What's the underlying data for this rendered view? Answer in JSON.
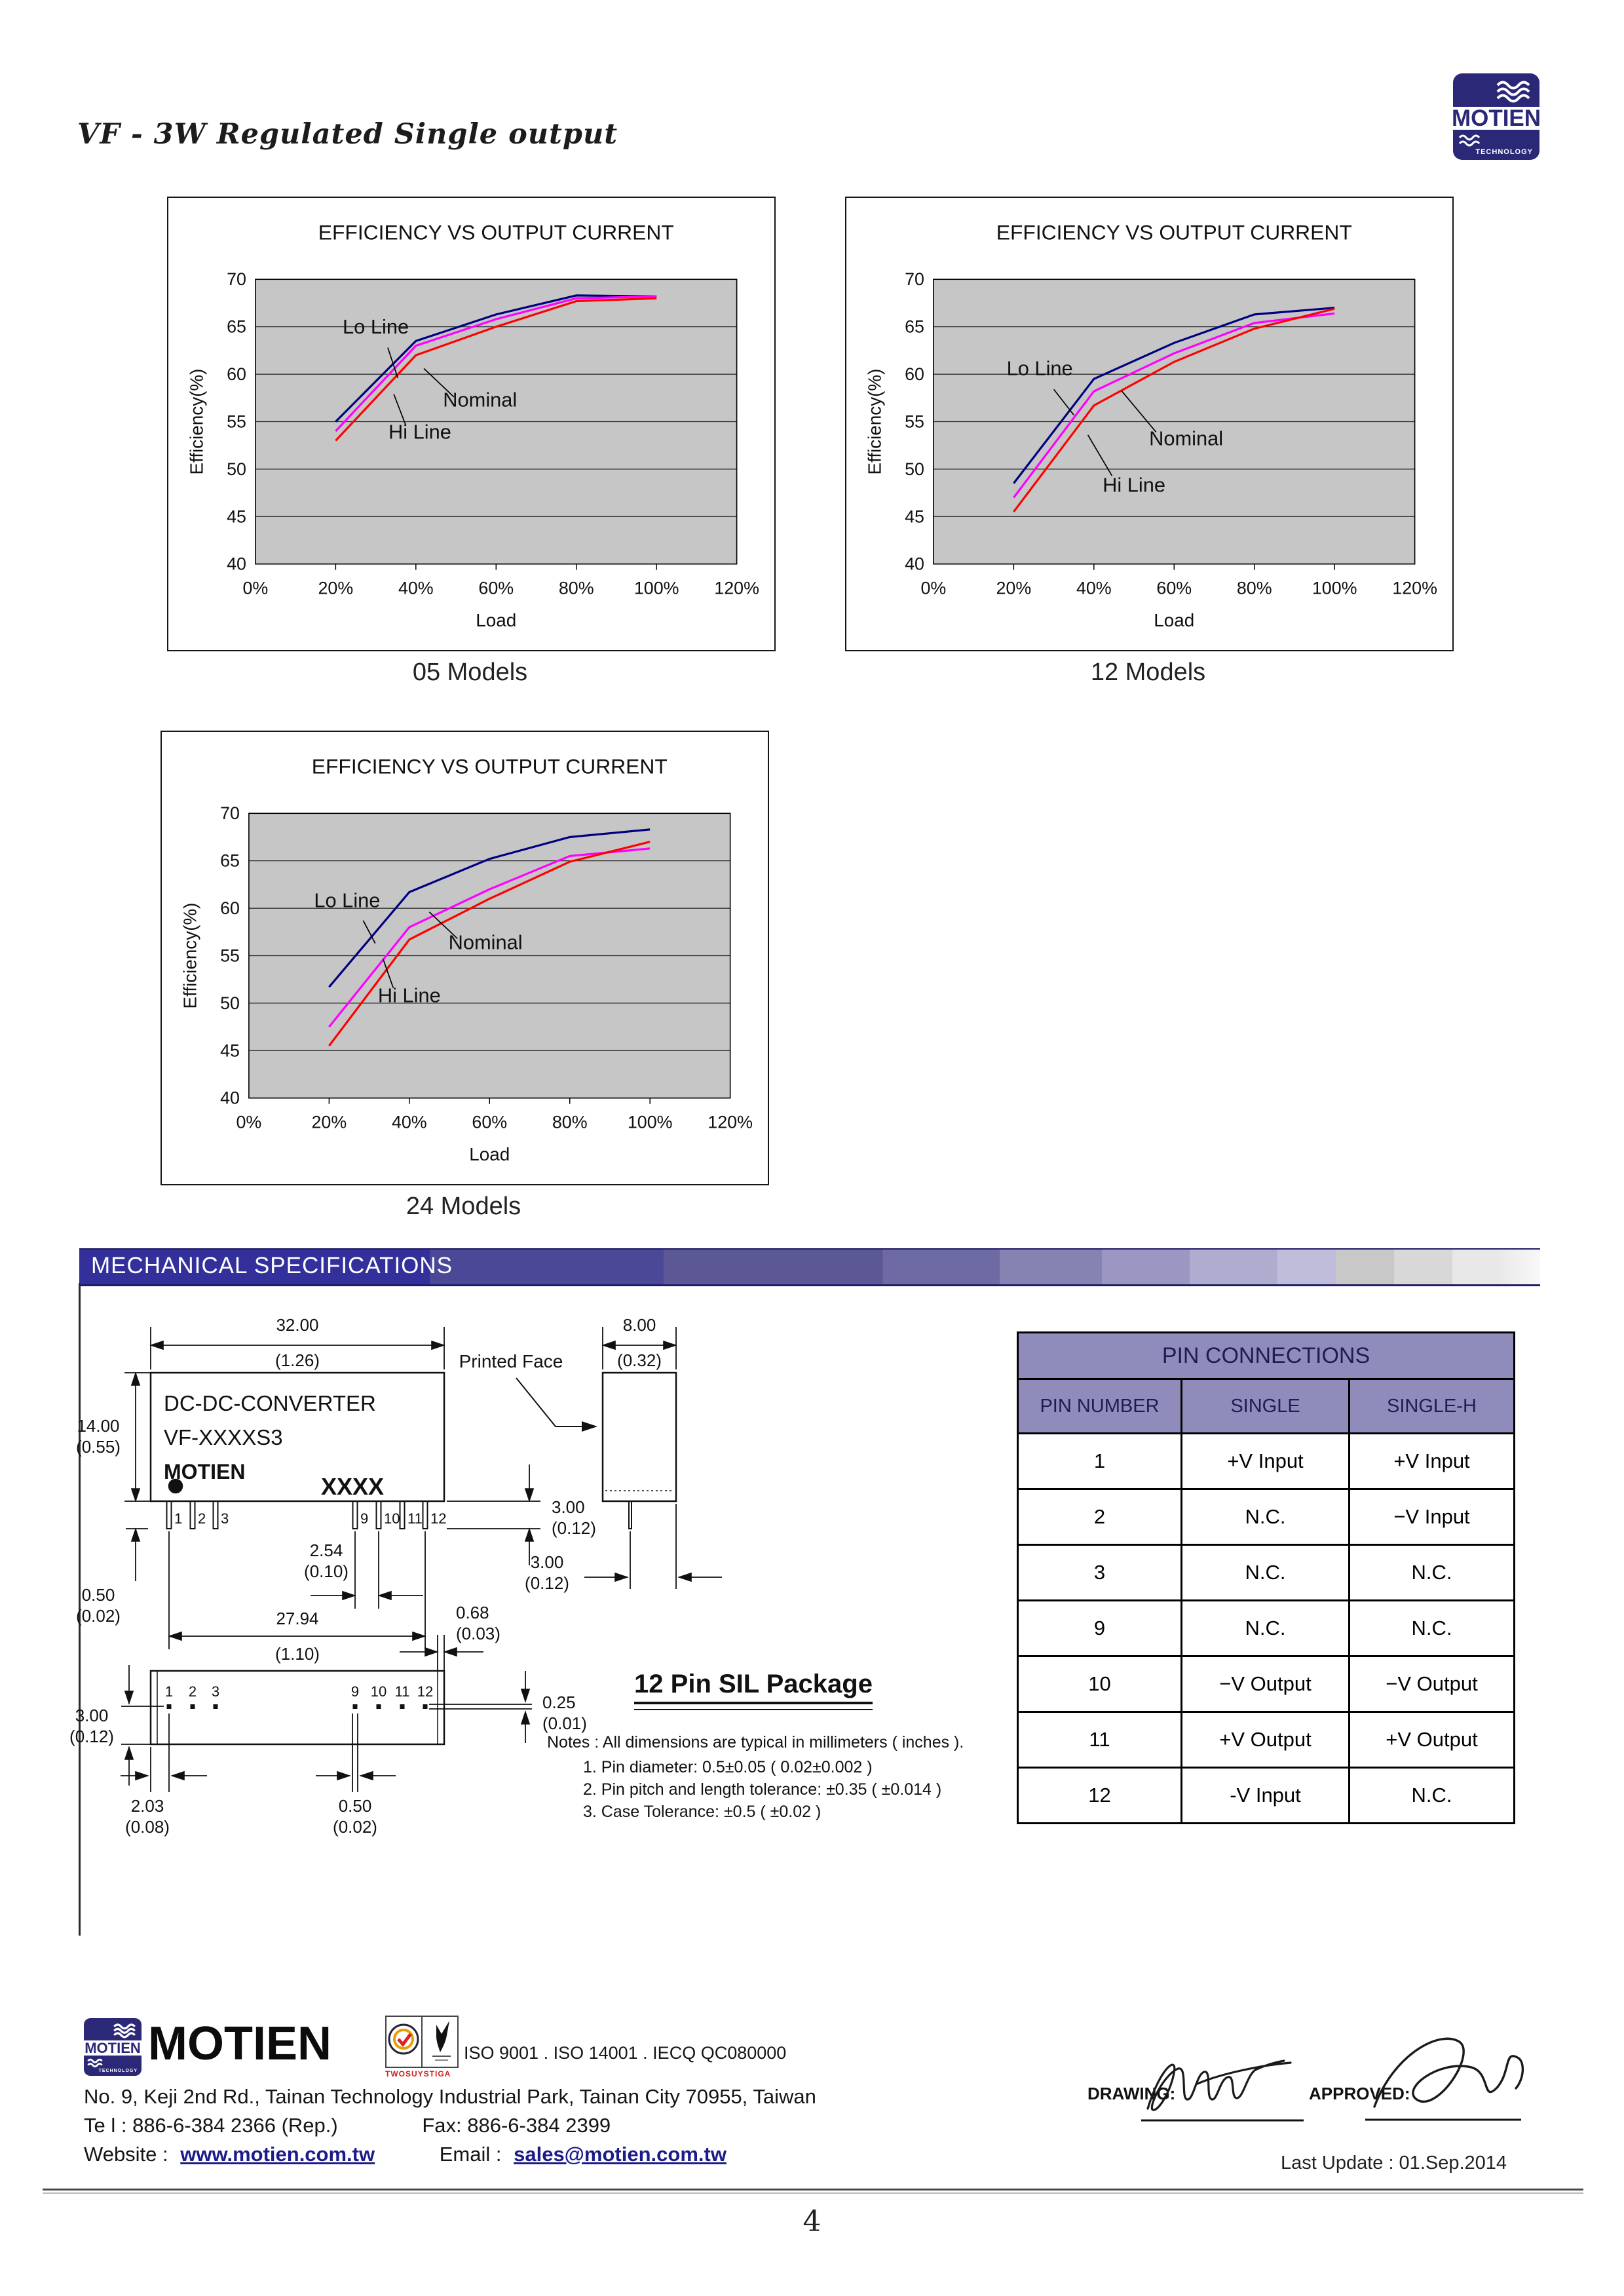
{
  "page": {
    "title": "VF - 3W Regulated Single output",
    "page_number": "4",
    "last_update": "Last Update : 01.Sep.2014"
  },
  "logo": {
    "brand": "MOTIEN",
    "sub": "TECHNOLOGY"
  },
  "charts": [
    {
      "id": "chart-05",
      "caption": "05 Models",
      "chart_data_note": "see series below",
      "title": "EFFICIENCY VS OUTPUT CURRENT",
      "xlabel": "Load",
      "ylabel": "Efficiency(%)",
      "type": "line",
      "x_ticks": [
        "0%",
        "20%",
        "40%",
        "60%",
        "80%",
        "100%",
        "120%"
      ],
      "x_values": [
        0,
        20,
        40,
        60,
        80,
        100,
        120
      ],
      "xlim": [
        0,
        120
      ],
      "ylim": [
        40,
        70
      ],
      "y_step": 5,
      "series": [
        {
          "name": "Lo Line",
          "color": "#000080",
          "x": [
            20,
            40,
            60,
            80,
            100
          ],
          "y": [
            55,
            63.5,
            66.3,
            68.3,
            68.2
          ]
        },
        {
          "name": "Nominal",
          "color": "#FF00FF",
          "x": [
            20,
            40,
            60,
            80,
            100
          ],
          "y": [
            54,
            63,
            65.8,
            68,
            68.2
          ]
        },
        {
          "name": "Hi Line",
          "color": "#FF0000",
          "x": [
            20,
            40,
            60,
            80,
            100
          ],
          "y": [
            53,
            62,
            65,
            67.7,
            68
          ]
        }
      ],
      "annotations": [
        {
          "label": "Lo Line",
          "tx": 30,
          "ty": 64.3,
          "lx1": 33,
          "ly1": 62.8,
          "lx2": 35.5,
          "ly2": 59.6
        },
        {
          "label": "Nominal",
          "tx": 56,
          "ty": 56.6,
          "lx1": 49.5,
          "ly1": 57.6,
          "lx2": 42,
          "ly2": 60.6
        },
        {
          "label": "Hi Line",
          "tx": 41,
          "ty": 53.2,
          "lx1": 37.5,
          "ly1": 54.6,
          "lx2": 34.5,
          "ly2": 57.9
        }
      ]
    },
    {
      "id": "chart-12",
      "caption": "12 Models",
      "title": "EFFICIENCY VS OUTPUT CURRENT",
      "xlabel": "Load",
      "ylabel": "Efficiency(%)",
      "type": "line",
      "x_ticks": [
        "0%",
        "20%",
        "40%",
        "60%",
        "80%",
        "100%",
        "120%"
      ],
      "x_values": [
        0,
        20,
        40,
        60,
        80,
        100,
        120
      ],
      "xlim": [
        0,
        120
      ],
      "ylim": [
        40,
        70
      ],
      "y_step": 5,
      "series": [
        {
          "name": "Lo Line",
          "color": "#000080",
          "x": [
            20,
            40,
            60,
            80,
            100
          ],
          "y": [
            48.5,
            59.5,
            63.3,
            66.3,
            67
          ]
        },
        {
          "name": "Nominal",
          "color": "#FF00FF",
          "x": [
            20,
            40,
            60,
            80,
            100
          ],
          "y": [
            47,
            58.2,
            62.2,
            65.4,
            66.4
          ]
        },
        {
          "name": "Hi Line",
          "color": "#FF0000",
          "x": [
            20,
            40,
            60,
            80,
            100
          ],
          "y": [
            45.5,
            56.7,
            61.3,
            64.8,
            66.9
          ]
        }
      ],
      "annotations": [
        {
          "label": "Lo Line",
          "tx": 26.5,
          "ty": 59.9,
          "lx1": 30,
          "ly1": 58.4,
          "lx2": 35,
          "ly2": 55.7
        },
        {
          "label": "Nominal",
          "tx": 63,
          "ty": 52.5,
          "lx1": 55.5,
          "ly1": 53.9,
          "lx2": 47,
          "ly2": 58.2
        },
        {
          "label": "Hi Line",
          "tx": 50,
          "ty": 47.6,
          "lx1": 44.5,
          "ly1": 49.3,
          "lx2": 38.5,
          "ly2": 53.6
        }
      ]
    },
    {
      "id": "chart-24",
      "caption": "24 Models",
      "title": "EFFICIENCY VS OUTPUT CURRENT",
      "xlabel": "Load",
      "ylabel": "Efficiency(%)",
      "type": "line",
      "x_ticks": [
        "0%",
        "20%",
        "40%",
        "60%",
        "80%",
        "100%",
        "120%"
      ],
      "x_values": [
        0,
        20,
        40,
        60,
        80,
        100,
        120
      ],
      "xlim": [
        0,
        120
      ],
      "ylim": [
        40,
        70
      ],
      "y_step": 5,
      "series": [
        {
          "name": "Lo Line",
          "color": "#000080",
          "x": [
            20,
            40,
            60,
            80,
            100
          ],
          "y": [
            51.7,
            61.7,
            65.2,
            67.5,
            68.3
          ]
        },
        {
          "name": "Nominal",
          "color": "#FF00FF",
          "x": [
            20,
            40,
            60,
            80,
            100
          ],
          "y": [
            47.5,
            58,
            62,
            65.5,
            66.3
          ]
        },
        {
          "name": "Hi Line",
          "color": "#FF0000",
          "x": [
            20,
            40,
            60,
            80,
            100
          ],
          "y": [
            45.5,
            56.7,
            61,
            64.9,
            67
          ]
        }
      ],
      "annotations": [
        {
          "label": "Lo Line",
          "tx": 24.5,
          "ty": 60.1,
          "lx1": 28.5,
          "ly1": 58.7,
          "lx2": 31.5,
          "ly2": 56.3
        },
        {
          "label": "Nominal",
          "tx": 59,
          "ty": 55.7,
          "lx1": 52,
          "ly1": 56.8,
          "lx2": 45,
          "ly2": 59.6
        },
        {
          "label": "Hi Line",
          "tx": 40,
          "ty": 50.1,
          "lx1": 36,
          "ly1": 51.6,
          "lx2": 33.5,
          "ly2": 54.6
        }
      ]
    }
  ],
  "mech": {
    "section_title": "MECHANICAL SPECIFICATIONS",
    "package_title": "12 Pin SIL Package",
    "printed_face": "Printed Face",
    "front_text": [
      "DC-DC-CONVERTER",
      "VF-XXXXS3",
      "MOTIEN",
      "XXXX"
    ],
    "pins": [
      "1",
      "2",
      "3",
      "9",
      "10",
      "11",
      "12"
    ],
    "dims": {
      "d32": {
        "mm": "32.00",
        "in": "(1.26)"
      },
      "d14": {
        "mm": "14.00",
        "in": "(0.55)"
      },
      "d8": {
        "mm": "8.00",
        "in": "(0.32)"
      },
      "d254": {
        "mm": "2.54",
        "in": "(0.10)"
      },
      "d050a": {
        "mm": "0.50",
        "in": "(0.02)"
      },
      "d300pin": {
        "mm": "3.00",
        "in": "(0.12)"
      },
      "d2794": {
        "mm": "27.94",
        "in": "(1.10)"
      },
      "d300side": {
        "mm": "3.00",
        "in": "(0.12)"
      },
      "d068": {
        "mm": "0.68",
        "in": "(0.03)"
      },
      "d300bot": {
        "mm": "3.00",
        "in": "(0.12)"
      },
      "d025": {
        "mm": "0.25",
        "in": "(0.01)"
      },
      "d203": {
        "mm": "2.03",
        "in": "(0.08)"
      },
      "d050b": {
        "mm": "0.50",
        "in": "(0.02)"
      }
    },
    "notes": [
      "Notes : All dimensions are typical in millimeters ( inches ).",
      "1.  Pin diameter:  0.5±0.05 ( 0.02±0.002 )",
      "2.  Pin pitch and length tolerance:  ±0.35 ( ±0.014 )",
      "3.  Case Tolerance:  ±0.5 ( ±0.02 )"
    ]
  },
  "pin_table": {
    "title": "PIN CONNECTIONS",
    "headers": [
      "PIN NUMBER",
      "SINGLE",
      "SINGLE-H"
    ],
    "rows": [
      [
        "1",
        "+V Input",
        "+V Input"
      ],
      [
        "2",
        "N.C.",
        "−V Input"
      ],
      [
        "3",
        "N.C.",
        "N.C."
      ],
      [
        "9",
        "N.C.",
        "N.C."
      ],
      [
        "10",
        "−V Output",
        "−V Output"
      ],
      [
        "11",
        "+V Output",
        "+V Output"
      ],
      [
        "12",
        "-V Input",
        "N.C."
      ]
    ]
  },
  "footer": {
    "brand": "MOTIEN",
    "badge_caption": "TWOSUYSTIGA",
    "iso": "ISO 9001 . ISO 14001 . IECQ QC080000",
    "address": "No. 9, Keji 2nd Rd., Tainan Technology Industrial Park, Tainan City 70955, Taiwan",
    "tel": "Te l : 886-6-384 2366 (Rep.)",
    "fax": "Fax: 886-6-384 2399",
    "website_label": "Website :",
    "website": "www.motien.com.tw",
    "email_label": "Email :",
    "email": "sales@motien.com.tw",
    "drawing_label": "DRAWING:",
    "approved_label": "APPROVED:"
  }
}
